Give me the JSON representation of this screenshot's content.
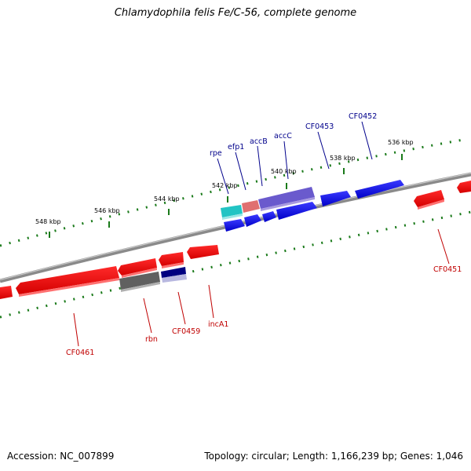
{
  "title": "Chlamydophila felis Fe/C-56, complete genome",
  "footer": {
    "accession": "Accession: NC_007899",
    "summary": "Topology: circular; Length: 1,166,239 bp; Genes: 1,046"
  },
  "scale_labels": [
    "548 kbp",
    "546 kbp",
    "544 kbp",
    "542 kbp",
    "540 kbp",
    "538 kbp",
    "536 kbp"
  ],
  "genes_forward": [
    {
      "label": "rpe",
      "color": "#22c4c4"
    },
    {
      "label": "efp1",
      "color": "#e07070"
    },
    {
      "label": "accB",
      "color": "#6a5acd"
    },
    {
      "label": "accC",
      "color": "#6a5acd"
    },
    {
      "label": "CF0453",
      "color": "#0000ee"
    },
    {
      "label": "CF0452",
      "color": "#0000ee"
    }
  ],
  "genes_reverse": [
    {
      "label": "CF0451",
      "color": "#ee0000"
    },
    {
      "label": "incA1",
      "color": "#ee0000"
    },
    {
      "label": "CF0459",
      "color": "#000080"
    },
    {
      "label": "rbn",
      "color": "#606060"
    },
    {
      "label": "CF0461",
      "color": "#ee0000"
    }
  ],
  "colors": {
    "forward_cds": "#0000ee",
    "reverse_cds": "#ee0000",
    "backbone": "#888888",
    "tick": "#1a7a1a",
    "label_forward": "#00008b",
    "label_reverse": "#c00000"
  }
}
